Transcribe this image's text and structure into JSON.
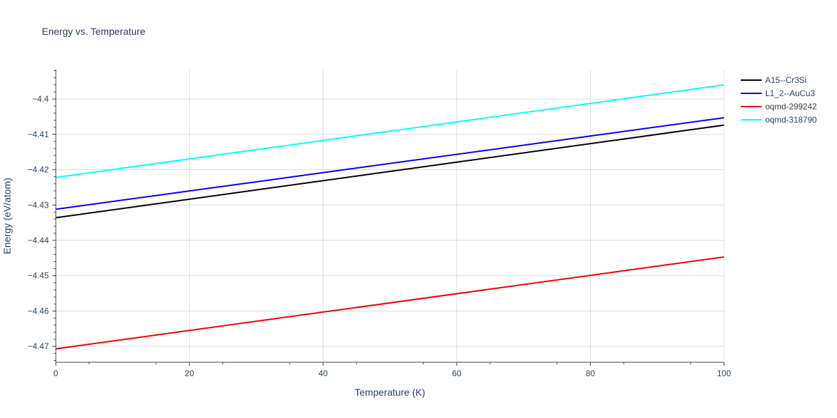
{
  "chart_data": {
    "type": "line",
    "title": "Energy vs. Temperature",
    "xlabel": "Temperature (K)",
    "ylabel": "Energy (eV/atom)",
    "xlim": [
      0,
      100
    ],
    "ylim": [
      -4.4745,
      -4.3917
    ],
    "x_ticks": [
      0,
      20,
      40,
      60,
      80,
      100
    ],
    "x_tick_labels": [
      "0",
      "20",
      "40",
      "60",
      "80",
      "100"
    ],
    "y_ticks": [
      -4.47,
      -4.46,
      -4.45,
      -4.44,
      -4.43,
      -4.42,
      -4.41,
      -4.4
    ],
    "y_tick_labels": [
      "−4.47",
      "−4.46",
      "−4.45",
      "−4.44",
      "−4.43",
      "−4.42",
      "−4.41",
      "−4.4"
    ],
    "grid": true,
    "legend_position": "top-right",
    "x": [
      0,
      100
    ],
    "series": [
      {
        "name": "A15--Cr3Si",
        "color": "#000000",
        "values": [
          -4.4336,
          -4.4074
        ]
      },
      {
        "name": "L1_2--AuCu3",
        "color": "#0000ee",
        "values": [
          -4.4312,
          -4.4053
        ]
      },
      {
        "name": "oqmd-299242",
        "color": "#ee0000",
        "values": [
          -4.4707,
          -4.4447
        ]
      },
      {
        "name": "oqmd-318790",
        "color": "#00ffff",
        "values": [
          -4.4222,
          -4.396
        ]
      }
    ]
  }
}
